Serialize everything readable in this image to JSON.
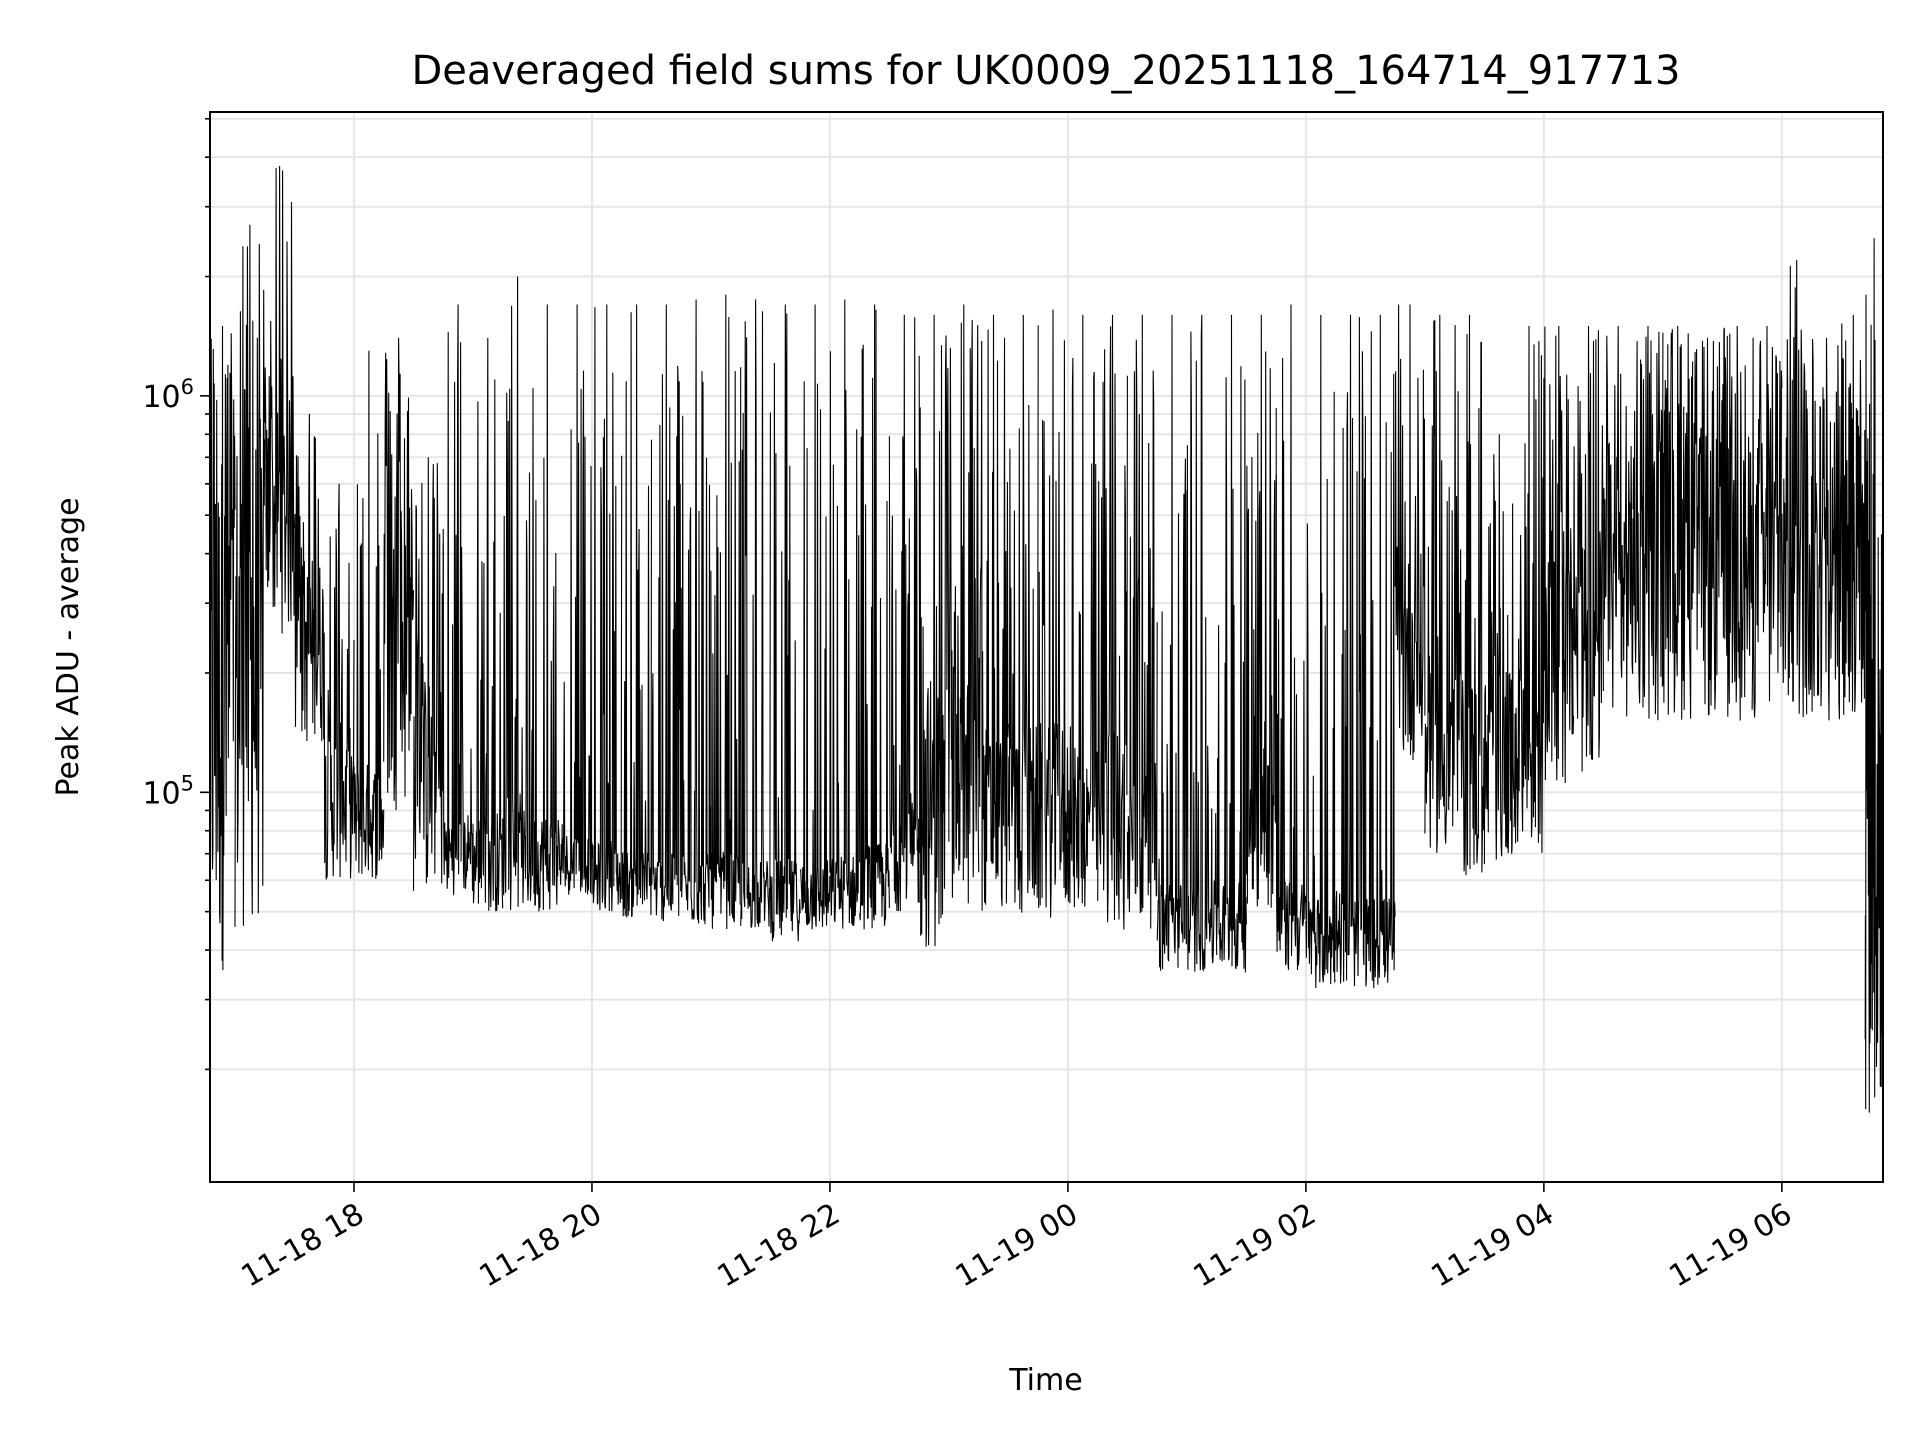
{
  "chart_data": {
    "type": "line",
    "title": "Deaveraged field sums for UK0009_20251118_164714_917713",
    "xlabel": "Time",
    "ylabel": "Peak ADU - average",
    "yscale": "log",
    "ylim": [
      10400,
      5200000
    ],
    "xlim_hours": [
      16.79,
      30.85
    ],
    "x_unit": "hours since 2025-11-18 00:00",
    "grid": true,
    "line_color": "#000000",
    "grid_color": "#e6e6e6",
    "x_ticks": [
      {
        "value": 18,
        "label": "11-18 18"
      },
      {
        "value": 20,
        "label": "11-18 20"
      },
      {
        "value": 22,
        "label": "11-18 22"
      },
      {
        "value": 24,
        "label": "11-19 00"
      },
      {
        "value": 26,
        "label": "11-19 02"
      },
      {
        "value": 28,
        "label": "11-19 04"
      },
      {
        "value": 30,
        "label": "11-19 06"
      }
    ],
    "y_ticks": [
      {
        "value": 100000,
        "base": "10",
        "exp": "5"
      },
      {
        "value": 1000000,
        "base": "10",
        "exp": "6"
      }
    ],
    "series_bins_note": "Each bin: [start_hour, baseline_low, baseline_high, peak] over 0.25 h",
    "bins": [
      [
        16.79,
        35000,
        800000,
        1500000
      ],
      [
        17.0,
        45000,
        900000,
        2700000
      ],
      [
        17.25,
        250000,
        1000000,
        3800000
      ],
      [
        17.5,
        130000,
        400000,
        900000
      ],
      [
        17.75,
        60000,
        150000,
        600000
      ],
      [
        18.0,
        60000,
        120000,
        1300000
      ],
      [
        18.25,
        90000,
        500000,
        1400000
      ],
      [
        18.5,
        55000,
        200000,
        700000
      ],
      [
        18.75,
        55000,
        90000,
        1700000
      ],
      [
        19.0,
        50000,
        90000,
        1400000
      ],
      [
        19.25,
        50000,
        90000,
        2000000
      ],
      [
        19.5,
        50000,
        90000,
        1700000
      ],
      [
        19.75,
        55000,
        80000,
        1700000
      ],
      [
        20.0,
        50000,
        75000,
        1700000
      ],
      [
        20.25,
        48000,
        72000,
        1700000
      ],
      [
        20.5,
        47000,
        70000,
        1700000
      ],
      [
        20.75,
        46000,
        70000,
        1750000
      ],
      [
        21.0,
        45000,
        70000,
        1800000
      ],
      [
        21.25,
        45000,
        68000,
        1750000
      ],
      [
        21.5,
        42000,
        68000,
        1700000
      ],
      [
        21.75,
        44000,
        68000,
        1700000
      ],
      [
        22.0,
        45000,
        70000,
        1750000
      ],
      [
        22.25,
        45000,
        75000,
        1700000
      ],
      [
        22.5,
        50000,
        100000,
        1600000
      ],
      [
        22.75,
        40000,
        200000,
        1600000
      ],
      [
        23.0,
        50000,
        200000,
        1700000
      ],
      [
        23.25,
        50000,
        150000,
        1600000
      ],
      [
        23.5,
        48000,
        150000,
        1600000
      ],
      [
        23.75,
        48000,
        150000,
        1650000
      ],
      [
        24.0,
        50000,
        130000,
        1600000
      ],
      [
        24.25,
        45000,
        150000,
        1600000
      ],
      [
        24.5,
        45000,
        120000,
        1600000
      ],
      [
        24.75,
        35000,
        60000,
        1600000
      ],
      [
        25.0,
        35000,
        60000,
        1600000
      ],
      [
        25.25,
        35000,
        60000,
        1600000
      ],
      [
        25.5,
        50000,
        150000,
        1600000
      ],
      [
        25.75,
        35000,
        60000,
        1700000
      ],
      [
        26.0,
        32000,
        55000,
        1600000
      ],
      [
        26.25,
        32000,
        55000,
        1600000
      ],
      [
        26.5,
        32000,
        55000,
        1600000
      ],
      [
        26.75,
        120000,
        400000,
        1700000
      ],
      [
        27.0,
        70000,
        200000,
        1600000
      ],
      [
        27.25,
        60000,
        200000,
        1600000
      ],
      [
        27.5,
        60000,
        200000,
        800000
      ],
      [
        27.75,
        70000,
        250000,
        1500000
      ],
      [
        28.0,
        100000,
        400000,
        1500000
      ],
      [
        28.25,
        110000,
        500000,
        1500000
      ],
      [
        28.5,
        150000,
        700000,
        1500000
      ],
      [
        28.75,
        150000,
        800000,
        1500000
      ],
      [
        29.0,
        150000,
        800000,
        1500000
      ],
      [
        29.25,
        150000,
        800000,
        1400000
      ],
      [
        29.5,
        150000,
        800000,
        1500000
      ],
      [
        29.75,
        150000,
        800000,
        1500000
      ],
      [
        30.0,
        150000,
        800000,
        2200000
      ],
      [
        30.25,
        150000,
        800000,
        1400000
      ],
      [
        30.5,
        150000,
        700000,
        1600000
      ],
      [
        30.7,
        15000,
        500000,
        2500000
      ]
    ]
  }
}
